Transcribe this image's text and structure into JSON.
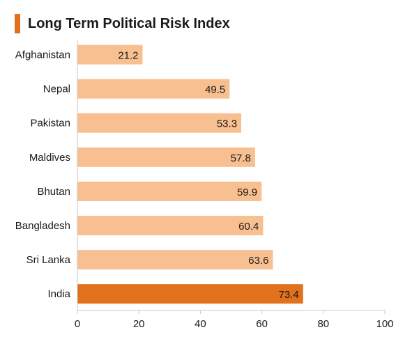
{
  "title": "Long Term Political Risk Index",
  "colors": {
    "accent": "#e2711d",
    "bar": "#f8bf91",
    "highlight_bar": "#e2711d",
    "axis": "#c8c8c8",
    "text": "#1a1a1a"
  },
  "chart_data": {
    "type": "bar",
    "orientation": "horizontal",
    "title": "Long Term Political Risk Index",
    "categories": [
      "Afghanistan",
      "Nepal",
      "Pakistan",
      "Maldives",
      "Bhutan",
      "Bangladesh",
      "Sri Lanka",
      "India"
    ],
    "values": [
      21.2,
      49.5,
      53.3,
      57.8,
      59.9,
      60.4,
      63.6,
      73.4
    ],
    "value_labels": [
      "21.2",
      "49.5",
      "53.3",
      "57.8",
      "59.9",
      "60.4",
      "63.6",
      "73.4"
    ],
    "highlight": "India",
    "xlim": [
      0,
      100
    ],
    "xticks": [
      0,
      20,
      40,
      60,
      80,
      100
    ],
    "xtick_labels": [
      "0",
      "20",
      "40",
      "60",
      "80",
      "100"
    ],
    "xlabel": "",
    "ylabel": "",
    "grid": false,
    "legend": "none"
  }
}
